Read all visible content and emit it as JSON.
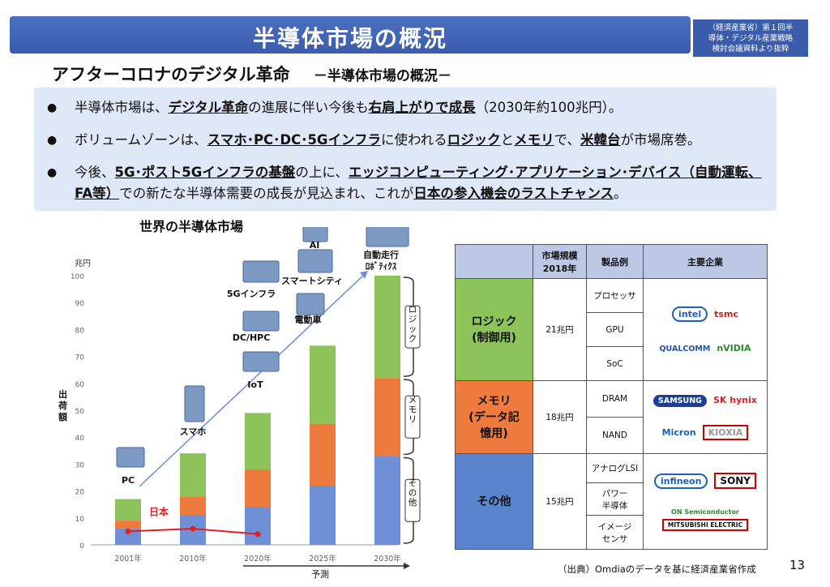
{
  "header": {
    "title": "半導体市場の概況",
    "source_lines": [
      "（経済産業省）第１回半",
      "導体・デジタル産業戦略",
      "検討会議資料より抜粋"
    ]
  },
  "subtitle": {
    "main": "アフターコロナのデジタル革命",
    "sub": "－半導体市場の概況－"
  },
  "bullets": {
    "b1": {
      "t1": "半導体市場は、",
      "u1": "デジタル革命",
      "t2": "の進展に伴い今後も",
      "u2": "右肩上がりで成長",
      "t3": "（2030年約100兆円）。"
    },
    "b2": {
      "t1": "ボリュームゾーンは、",
      "u1": "スマホ･PC･DC･5Gインフラ",
      "t2": "に使われる",
      "u2": "ロジック",
      "t3": "と",
      "u3": "メモリ",
      "t4": "で、",
      "u4": "米韓台",
      "t5": "が市場席巻。"
    },
    "b3": {
      "t1": "今後、",
      "u1": "5G･ポスト5Gインフラの基盤",
      "t2": "の上に、",
      "u2": "エッジコンピューティング･アプリケーション･デバイス（自動運転、FA等）",
      "t3": "での新たな半導体需要の成長が見込まれ、これが",
      "u3": "日本の参入機会のラストチャンス",
      "t4": "。"
    }
  },
  "chart_title": "世界の半導体市場",
  "chart_data": {
    "type": "bar",
    "stacked": true,
    "categories": [
      "2001年",
      "2010年",
      "2020年",
      "2025年",
      "2030年"
    ],
    "series": [
      {
        "name": "その他",
        "values": [
          6,
          11,
          14,
          22,
          33
        ]
      },
      {
        "name": "メモリ",
        "values": [
          3,
          7,
          14,
          23,
          29
        ]
      },
      {
        "name": "ロジック",
        "values": [
          8,
          16,
          21,
          29,
          38
        ]
      }
    ],
    "line": {
      "name": "日本",
      "x": [
        "2001年",
        "2010年",
        "2020年"
      ],
      "values": [
        5,
        6,
        4
      ]
    },
    "ylabel": "出荷額",
    "yunit": "兆円",
    "ylim": [
      0,
      100
    ],
    "yticks": [
      0,
      10,
      20,
      30,
      40,
      50,
      60,
      70,
      80,
      90,
      100
    ],
    "forecast_label": "予測",
    "annotations": [
      "PC",
      "スマホ",
      "IoT",
      "DC/HPC",
      "5Gインフラ",
      "電動車",
      "スマートシティ",
      "AI",
      "自動走行",
      "ﾛﾎﾞﾃｨｸｽ"
    ],
    "colors": {
      "その他": "#6f8fd6",
      "メモリ": "#ee7a3e",
      "ロジック": "#8dc45a",
      "日本": "#e02020"
    }
  },
  "table": {
    "headers": [
      "",
      "市場規模\n2018年",
      "製品例",
      "主要企業"
    ],
    "rows": [
      {
        "category": "ロジック\n(制御用)",
        "size": "21兆円",
        "products": [
          "プロセッサ",
          "GPU",
          "SoC"
        ],
        "companies": [
          "intel",
          "tsmc",
          "QUALCOMM",
          "nVIDIA"
        ]
      },
      {
        "category": "メモリ\n(データ記\n憶用)",
        "size": "18兆円",
        "products": [
          "DRAM",
          "NAND"
        ],
        "companies": [
          "SAMSUNG",
          "SK hynix",
          "Micron",
          "KIOXIA"
        ]
      },
      {
        "category": "その他",
        "size": "15兆円",
        "products": [
          "アナログLSI",
          "パワー\n半導体",
          "イメージ\nセンサ"
        ],
        "companies": [
          "infineon",
          "SONY",
          "ON Semiconductor",
          "MITSUBISHI ELECTRIC"
        ]
      }
    ]
  },
  "footer": {
    "source": "（出典）Omdiaのデータを基に経済産業省作成",
    "page": "13"
  }
}
